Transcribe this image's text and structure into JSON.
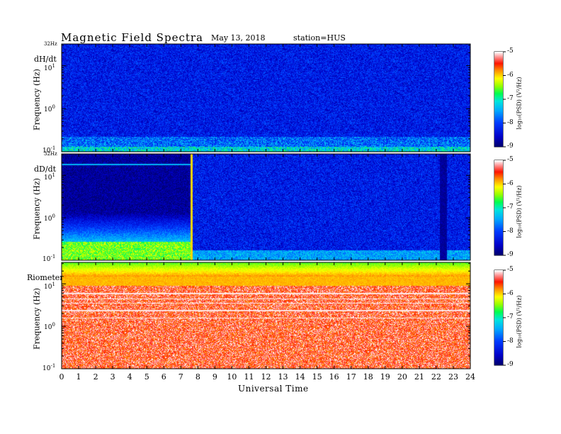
{
  "header": {
    "title": "Magnetic  Field  Spectra",
    "date": "May 13, 2018",
    "station": "station=HUS"
  },
  "axes": {
    "x_label": "Universal Time",
    "x_ticks": [
      "0",
      "1",
      "2",
      "3",
      "4",
      "5",
      "6",
      "7",
      "8",
      "9",
      "10",
      "11",
      "12",
      "13",
      "14",
      "15",
      "16",
      "17",
      "18",
      "19",
      "20",
      "21",
      "22",
      "23",
      "24"
    ],
    "y_label": "Frequency  (Hz)",
    "y_top_label": "32Hz",
    "y_tick_base": "10",
    "y_tick_exponents": [
      "1",
      "0",
      "-1"
    ]
  },
  "colorbar": {
    "label": "log₁₀(PSD) (V²/Hz)",
    "ticks": [
      "-5",
      "-6",
      "-7",
      "-8",
      "-9"
    ],
    "colors": [
      "#ffffff",
      "#ff0000",
      "#ffff00",
      "#00ff00",
      "#00ffff",
      "#0000ff",
      "#000080"
    ]
  },
  "chart_data": [
    {
      "type": "heatmap",
      "panel": "dH/dt",
      "x_range_hours": [
        0,
        24
      ],
      "y_range_hz": [
        0.1,
        32
      ],
      "y_scale": "log",
      "z_range_log10_psd": [
        -9,
        -5
      ],
      "description_levels": {
        "background": -8.3,
        "low_freq_band": -7.8
      }
    },
    {
      "type": "heatmap",
      "panel": "dD/dt",
      "x_range_hours": [
        0,
        24
      ],
      "y_range_hz": [
        0.1,
        32
      ],
      "y_scale": "log",
      "z_range_log10_psd": [
        -9,
        -5
      ],
      "segments": [
        {
          "start": 0,
          "end": 7.6,
          "level": -8.8,
          "low_freq_rise": -6.5
        },
        {
          "start": 7.6,
          "end": 24,
          "level": -8.3
        }
      ],
      "dark_band_hours": [
        22.2,
        22.6
      ]
    },
    {
      "type": "heatmap",
      "panel": "Riometer",
      "x_range_hours": [
        0,
        24
      ],
      "y_range_hz": [
        0.1,
        32
      ],
      "y_scale": "log",
      "z_range_log10_psd": [
        -9,
        -5
      ],
      "description_levels": {
        "top_band": -5.8,
        "strong_band": -5.9,
        "background": -5.4
      }
    }
  ]
}
